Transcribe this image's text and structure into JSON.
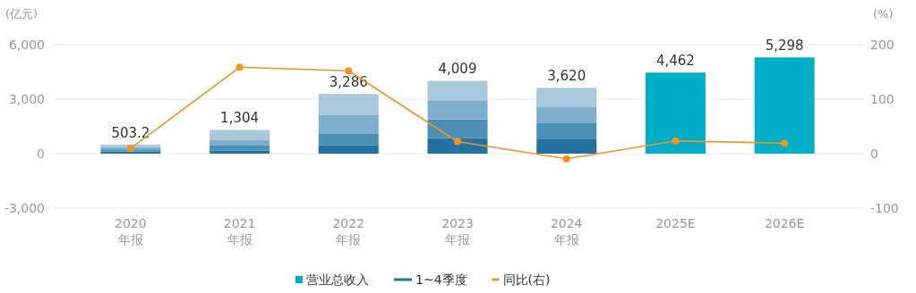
{
  "chart_data": {
    "type": "bar",
    "stacked": true,
    "categories": [
      "2020\n年报",
      "2021\n年报",
      "2022\n年报",
      "2023\n年报",
      "2024\n年报",
      "2025E",
      "2026E"
    ],
    "ylabel": "(亿元)",
    "y2label": "(%)",
    "ylim": [
      -3000,
      6000
    ],
    "yticks": [
      {
        "value": -3000,
        "label": "-3,000"
      },
      0,
      {
        "value": 3000,
        "label": "3,000"
      },
      {
        "value": 6000,
        "label": "6,000"
      }
    ],
    "y2lim": [
      -100,
      200
    ],
    "y2ticks": [
      -100,
      0,
      100,
      200
    ],
    "series": [
      {
        "name": "1~4季度",
        "color": "#2271a0",
        "values": [
          115,
          164,
          475,
          853,
          787,
          null,
          null
        ]
      },
      {
        "color": "#4d90b5",
        "values": [
          120,
          279,
          640,
          1033,
          885,
          null,
          null
        ]
      },
      {
        "color": "#7eaecb",
        "values": [
          125,
          295,
          1000,
          1050,
          918,
          null,
          null
        ]
      },
      {
        "color": "#a9c9da",
        "values": [
          143.2,
          566,
          1171,
          1073,
          1030,
          null,
          null
        ]
      },
      {
        "name": "营业总收入",
        "color": "#00aec7",
        "values": [
          null,
          null,
          null,
          null,
          null,
          4462,
          5298
        ]
      },
      {
        "name": "同比(右)",
        "type": "line",
        "axis": "y2",
        "color": "#f39325",
        "marker": "circle",
        "values": [
          9.8,
          158.5,
          152,
          22,
          -9.3,
          23.5,
          19
        ]
      }
    ],
    "totals": [
      "503.2",
      "1,304",
      "3,286",
      "4,009",
      "3,620",
      "4,462",
      "5,298"
    ],
    "grid": "y",
    "legend": "bottom"
  }
}
